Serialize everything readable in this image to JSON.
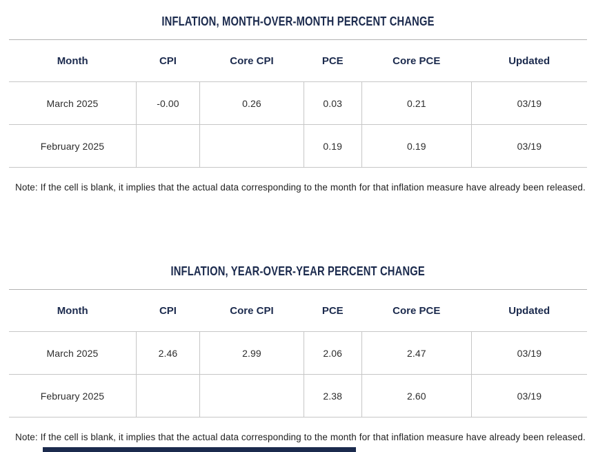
{
  "page": {
    "background": "#ffffff",
    "accent_navy": "#1b2a4d",
    "grid_line_color": "#c6c6c6",
    "body_text_color": "#2d2d2d"
  },
  "chart_data": [
    {
      "type": "table",
      "title": "INFLATION, MONTH-OVER-MONTH PERCENT CHANGE",
      "columns": [
        "Month",
        "CPI",
        "Core CPI",
        "PCE",
        "Core PCE",
        "Updated"
      ],
      "rows": [
        [
          "March 2025",
          "-0.00",
          "0.26",
          "0.03",
          "0.21",
          "03/19"
        ],
        [
          "February 2025",
          "",
          "",
          "0.19",
          "0.19",
          "03/19"
        ]
      ],
      "note": "Note: If the cell is blank, it implies that the actual data corresponding to the month for that inflation measure have already been released."
    },
    {
      "type": "table",
      "title": "INFLATION, YEAR-OVER-YEAR PERCENT CHANGE",
      "columns": [
        "Month",
        "CPI",
        "Core CPI",
        "PCE",
        "Core PCE",
        "Updated"
      ],
      "rows": [
        [
          "March 2025",
          "2.46",
          "2.99",
          "2.06",
          "2.47",
          "03/19"
        ],
        [
          "February 2025",
          "",
          "",
          "2.38",
          "2.60",
          "03/19"
        ]
      ],
      "note": "Note: If the cell is blank, it implies that the actual data corresponding to the month for that inflation measure have already been released."
    }
  ]
}
